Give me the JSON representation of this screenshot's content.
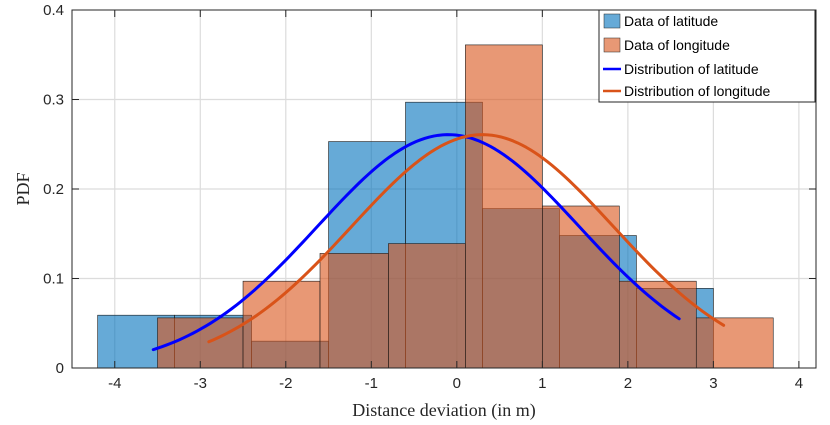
{
  "chart_data": {
    "type": "bar",
    "title": "",
    "xlabel": "Distance deviation (in m)",
    "ylabel": "PDF",
    "xlim": [
      -4.5,
      4.2
    ],
    "ylim": [
      0,
      0.4
    ],
    "grid": true,
    "legend_position": "top-right",
    "x_ticks": [
      -4,
      -3,
      -2,
      -1,
      0,
      1,
      2,
      3,
      4
    ],
    "x_tick_labels": [
      "-4",
      "-3",
      "-2",
      "-1",
      "0",
      "1",
      "2",
      "3",
      "4"
    ],
    "y_ticks": [
      0,
      0.1,
      0.2,
      0.3,
      0.4
    ],
    "y_tick_labels": [
      "0",
      "0.1",
      "0.2",
      "0.3",
      "0.4"
    ],
    "colors": {
      "latitude_hist": "#0072BD",
      "longitude_hist": "#D95319",
      "latitude_curve": "#0000FF",
      "longitude_curve": "#D95319"
    },
    "histograms": [
      {
        "name": "Data of latitude",
        "bins": [
          {
            "x0": -4.2,
            "x1": -3.3,
            "density": 0.059
          },
          {
            "x0": -3.3,
            "x1": -2.4,
            "density": 0.059
          },
          {
            "x0": -2.4,
            "x1": -1.5,
            "density": 0.03
          },
          {
            "x0": -1.5,
            "x1": -0.6,
            "density": 0.253
          },
          {
            "x0": -0.6,
            "x1": 0.3,
            "density": 0.297
          },
          {
            "x0": 0.3,
            "x1": 1.2,
            "density": 0.178
          },
          {
            "x0": 1.2,
            "x1": 2.1,
            "density": 0.148
          },
          {
            "x0": 2.1,
            "x1": 3.0,
            "density": 0.089
          }
        ]
      },
      {
        "name": "Data of longitude",
        "bins": [
          {
            "x0": -3.5,
            "x1": -2.5,
            "density": 0.056
          },
          {
            "x0": -2.5,
            "x1": -1.6,
            "density": 0.097
          },
          {
            "x0": -1.6,
            "x1": -0.8,
            "density": 0.128
          },
          {
            "x0": -0.8,
            "x1": 0.1,
            "density": 0.139
          },
          {
            "x0": 0.1,
            "x1": 1.0,
            "density": 0.361
          },
          {
            "x0": 1.0,
            "x1": 1.9,
            "density": 0.181
          },
          {
            "x0": 1.9,
            "x1": 2.8,
            "density": 0.097
          },
          {
            "x0": 2.8,
            "x1": 3.7,
            "density": 0.056
          }
        ]
      }
    ],
    "series": [
      {
        "name": "Distribution of latitude",
        "mean": -0.1,
        "std": 1.53,
        "x_range": [
          -3.55,
          2.6
        ]
      },
      {
        "name": "Distribution of longitude",
        "mean": 0.3,
        "std": 1.53,
        "x_range": [
          -2.9,
          3.12
        ]
      }
    ]
  }
}
